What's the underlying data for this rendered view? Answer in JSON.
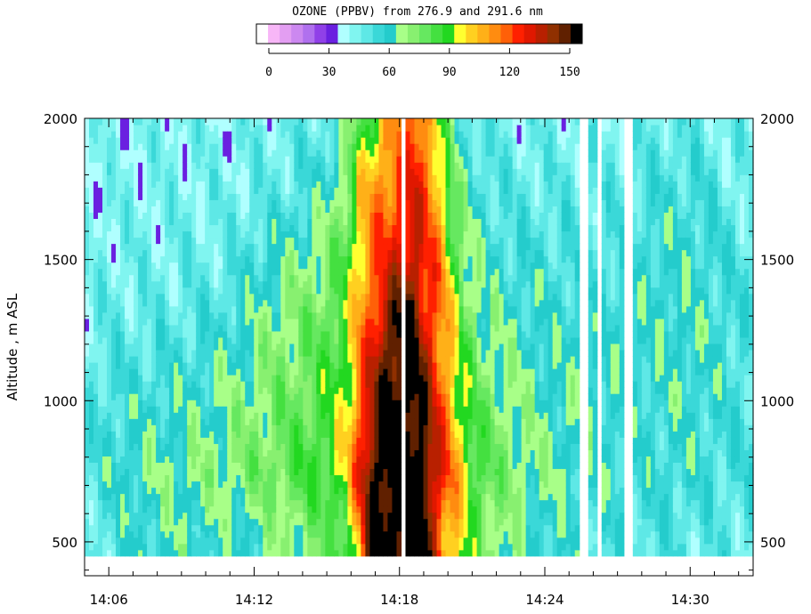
{
  "chart_data": {
    "type": "heatmap",
    "title": "OZONE (PPBV) from 276.9 and 291.6 nm",
    "ylabel": "Altitude , m ASL",
    "xlabel": "",
    "y_ticks": [
      500,
      1000,
      1500,
      2000
    ],
    "y_tick_labels": [
      "500",
      "1000",
      "1500",
      "2000"
    ],
    "ylim": [
      380,
      2000
    ],
    "x_ticks": [
      "14:06",
      "14:12",
      "14:18",
      "14:24",
      "14:30"
    ],
    "x_tick_minutes": [
      6,
      12,
      18,
      24,
      30
    ],
    "xlim_minutes": [
      5,
      32.6
    ],
    "colorbar": {
      "min": 0,
      "max": 150,
      "tick_values": [
        0,
        30,
        60,
        90,
        120,
        150
      ],
      "tick_labels": [
        "0",
        "30",
        "60",
        "90",
        "120",
        "150"
      ],
      "colors": [
        "#ffffff",
        "#f7b6f7",
        "#e39ef2",
        "#cc88f0",
        "#b070ee",
        "#9040e8",
        "#6a20e0",
        "#b0ffff",
        "#80f5f0",
        "#5ee8e6",
        "#3ad8d8",
        "#24cccc",
        "#a8ff88",
        "#88f070",
        "#66e860",
        "#44e040",
        "#22d820",
        "#ffff30",
        "#ffd020",
        "#ffb018",
        "#ff8c10",
        "#ff6008",
        "#ff2000",
        "#e01800",
        "#b82000",
        "#903000",
        "#602000",
        "#000000"
      ]
    },
    "ozone_field": {
      "description_levels": "ppbv values along time (columns) and altitude (rows)",
      "time_minutes": [
        5.0,
        6.0,
        7.0,
        8.0,
        9.0,
        10.0,
        11.0,
        12.0,
        13.0,
        14.0,
        15.0,
        15.8,
        16.3,
        16.8,
        17.3,
        17.8,
        18.2,
        18.6,
        19.0,
        19.4,
        19.8,
        20.3,
        20.8,
        21.5,
        22.5,
        23.5,
        24.5,
        25.5,
        26.5,
        27.5,
        28.5,
        29.5,
        30.5,
        31.5,
        32.6
      ],
      "altitudes_m": [
        500,
        750,
        1000,
        1250,
        1500,
        1750,
        2000
      ],
      "values_ppbv": [
        [
          48,
          52,
          50,
          47,
          45,
          44,
          43
        ],
        [
          52,
          58,
          55,
          50,
          47,
          45,
          44
        ],
        [
          58,
          62,
          56,
          50,
          47,
          45,
          44
        ],
        [
          60,
          64,
          58,
          51,
          47,
          46,
          45
        ],
        [
          62,
          66,
          60,
          52,
          48,
          46,
          45
        ],
        [
          60,
          68,
          62,
          54,
          48,
          46,
          45
        ],
        [
          58,
          70,
          66,
          58,
          50,
          46,
          45
        ],
        [
          62,
          74,
          70,
          64,
          56,
          48,
          46
        ],
        [
          66,
          78,
          74,
          70,
          62,
          50,
          47
        ],
        [
          70,
          82,
          78,
          74,
          66,
          54,
          48
        ],
        [
          75,
          88,
          84,
          80,
          72,
          60,
          50
        ],
        [
          85,
          95,
          92,
          88,
          82,
          75,
          60
        ],
        [
          100,
          120,
          112,
          105,
          100,
          95,
          80
        ],
        [
          150,
          145,
          130,
          118,
          110,
          105,
          90
        ],
        [
          150,
          150,
          150,
          135,
          118,
          112,
          100
        ],
        [
          150,
          150,
          150,
          145,
          125,
          115,
          105
        ],
        [
          150,
          150,
          150,
          150,
          130,
          120,
          110
        ],
        [
          150,
          150,
          150,
          148,
          132,
          125,
          120
        ],
        [
          150,
          150,
          140,
          130,
          122,
          118,
          112
        ],
        [
          130,
          135,
          128,
          120,
          115,
          110,
          100
        ],
        [
          110,
          120,
          115,
          110,
          105,
          95,
          80
        ],
        [
          100,
          108,
          100,
          92,
          85,
          75,
          62
        ],
        [
          88,
          92,
          86,
          78,
          70,
          60,
          52
        ],
        [
          74,
          80,
          74,
          68,
          60,
          54,
          48
        ],
        [
          66,
          72,
          68,
          62,
          56,
          50,
          46
        ],
        [
          60,
          66,
          64,
          60,
          56,
          50,
          46
        ],
        [
          58,
          64,
          62,
          58,
          54,
          50,
          46
        ],
        [
          56,
          62,
          62,
          60,
          56,
          50,
          46
        ],
        [
          54,
          60,
          60,
          58,
          54,
          50,
          46
        ],
        [
          52,
          58,
          58,
          58,
          56,
          52,
          46
        ],
        [
          52,
          56,
          58,
          60,
          58,
          54,
          48
        ],
        [
          52,
          58,
          60,
          62,
          60,
          56,
          50
        ],
        [
          50,
          56,
          58,
          60,
          58,
          54,
          48
        ],
        [
          50,
          54,
          56,
          56,
          54,
          50,
          46
        ],
        [
          50,
          54,
          54,
          52,
          50,
          48,
          46
        ]
      ],
      "data_gaps_minutes": [
        [
          18.05,
          18.25
        ],
        [
          25.5,
          25.75
        ],
        [
          26.2,
          26.35
        ],
        [
          27.35,
          27.55
        ]
      ],
      "surface_altitude_m": 450
    }
  }
}
